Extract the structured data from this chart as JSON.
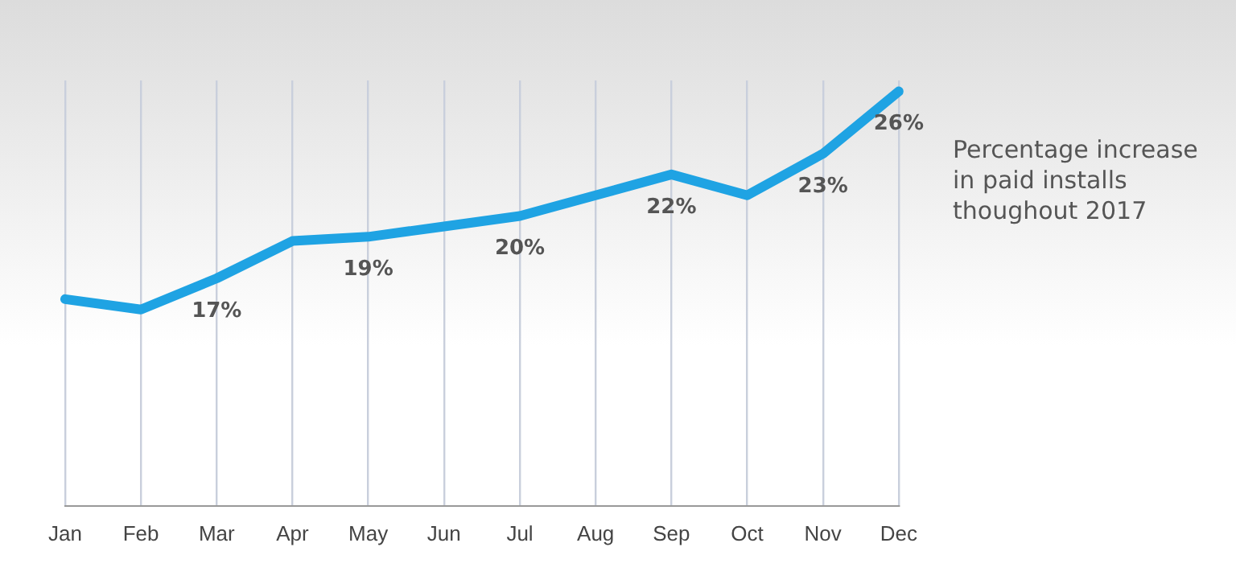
{
  "chart_data": {
    "type": "line",
    "title": "Percentage increase in paid installs thoughout 2017",
    "categories": [
      "Jan",
      "Feb",
      "Mar",
      "Apr",
      "May",
      "Jun",
      "Jul",
      "Aug",
      "Sep",
      "Oct",
      "Nov",
      "Dec"
    ],
    "series": [
      {
        "color": "#1fa3e3",
        "values": [
          16,
          15.5,
          17,
          18.8,
          19,
          19.5,
          20,
          21,
          22,
          21,
          23,
          26
        ],
        "value_labels": [
          null,
          null,
          "17%",
          null,
          "19%",
          null,
          "20%",
          null,
          "22%",
          null,
          "23%",
          "26%"
        ]
      }
    ],
    "grid": "x",
    "marker": "none",
    "legend": false,
    "line_style": "solid",
    "tick_labels": "x"
  }
}
